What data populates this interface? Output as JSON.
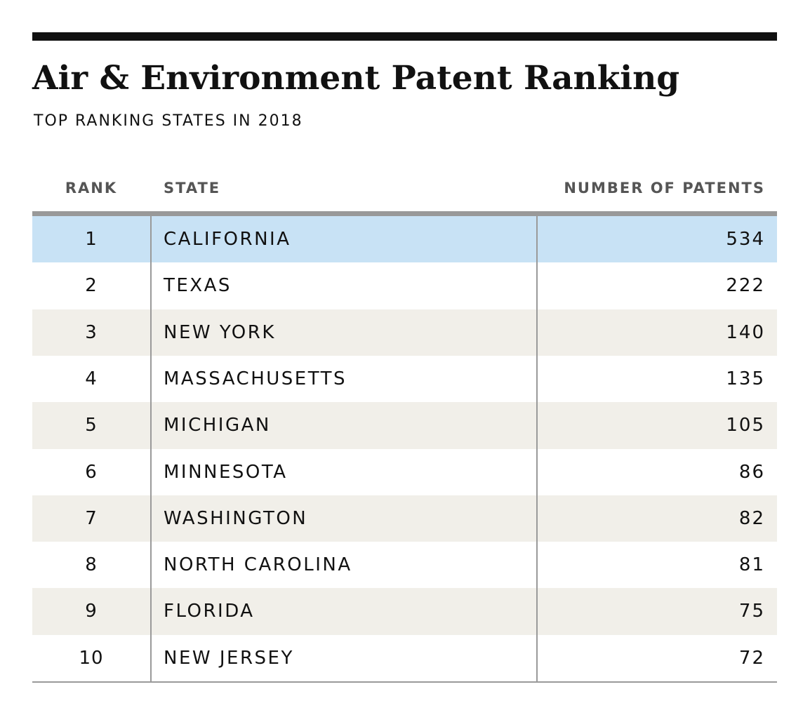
{
  "chart_data": {
    "type": "table",
    "title": "Air & Environment Patent Ranking",
    "subtitle": "TOP RANKING STATES IN 2018",
    "columns": [
      "RANK",
      "STATE",
      "NUMBER OF PATENTS"
    ],
    "rows": [
      {
        "rank": "1",
        "state": "CALIFORNIA",
        "patents": "534",
        "highlighted": true
      },
      {
        "rank": "2",
        "state": "TEXAS",
        "patents": "222"
      },
      {
        "rank": "3",
        "state": "NEW YORK",
        "patents": "140"
      },
      {
        "rank": "4",
        "state": "MASSACHUSETTS",
        "patents": "135"
      },
      {
        "rank": "5",
        "state": "MICHIGAN",
        "patents": "105"
      },
      {
        "rank": "6",
        "state": "MINNESOTA",
        "patents": "86"
      },
      {
        "rank": "7",
        "state": "WASHINGTON",
        "patents": "82"
      },
      {
        "rank": "8",
        "state": "NORTH CAROLINA",
        "patents": "81"
      },
      {
        "rank": "9",
        "state": "FLORIDA",
        "patents": "75"
      },
      {
        "rank": "10",
        "state": "NEW JERSEY",
        "patents": "72"
      }
    ],
    "colors": {
      "highlight_row": "#c8e2f5",
      "alternate_row": "#f1efe9",
      "rule": "#111111",
      "divider": "#9a9a9a"
    }
  }
}
